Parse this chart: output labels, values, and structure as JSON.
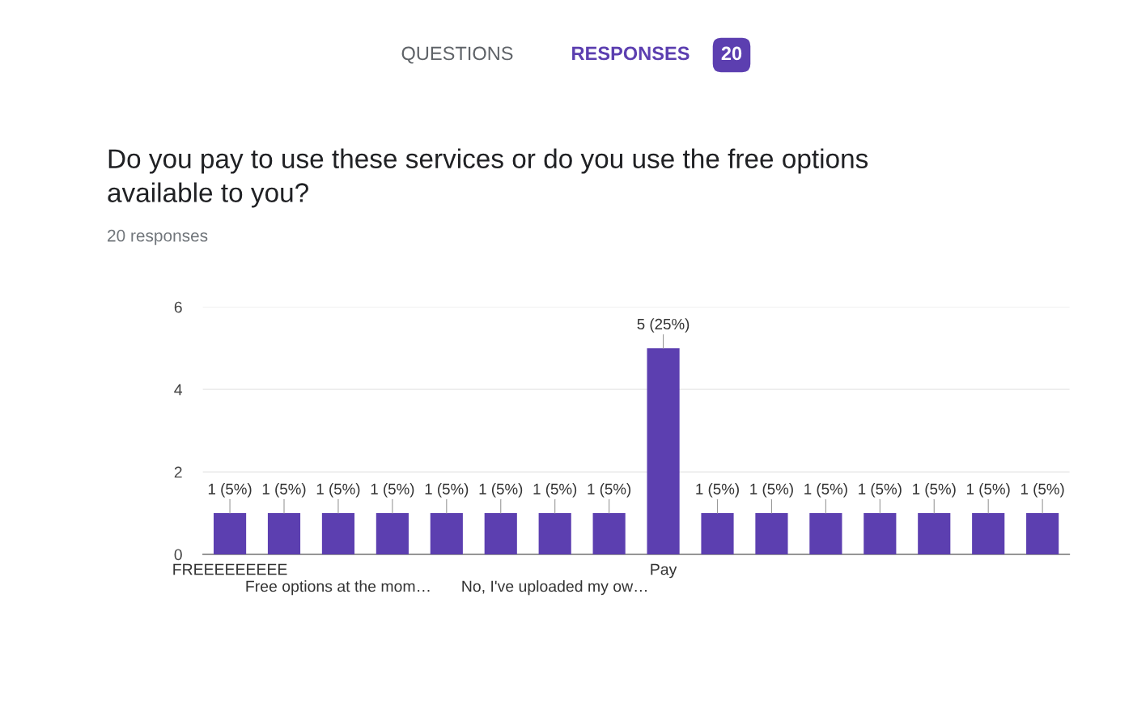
{
  "chart_data": {
    "type": "bar",
    "title": "Do you pay to use these services or do you use the free options\navailable to you?",
    "subtitle": "20 responses",
    "annotations": [
      "QUESTIONS",
      "RESPONSES",
      "20"
    ],
    "categories": [
      "FREEEEEEEEE",
      null,
      "Free options at the mom…",
      null,
      null,
      null,
      "No, I've uploaded my ow…",
      null,
      "Pay",
      null,
      null,
      null,
      null,
      null,
      null,
      null
    ],
    "values": [
      1,
      1,
      1,
      1,
      1,
      1,
      1,
      1,
      5,
      1,
      1,
      1,
      1,
      1,
      1,
      1
    ],
    "value_labels": [
      "1 (5%)",
      "1 (5%)",
      "1 (5%)",
      "1 (5%)",
      "1 (5%)",
      "1 (5%)",
      "1 (5%)",
      "1 (5%)",
      "5 (25%)",
      "1 (5%)",
      "1 (5%)",
      "1 (5%)",
      "1 (5%)",
      "1 (5%)",
      "1 (5%)",
      "1 (5%)"
    ],
    "color": "#5c3fb0",
    "ylim": [
      0,
      6
    ],
    "yticks": [
      0,
      2,
      4,
      6
    ],
    "grid": "y"
  }
}
